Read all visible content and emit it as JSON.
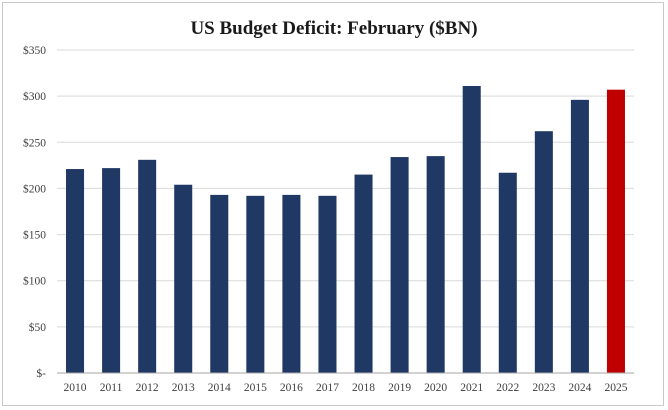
{
  "chart_data": {
    "type": "bar",
    "title": "US Budget Deficit: February ($BN)",
    "xlabel": "",
    "ylabel": "",
    "categories": [
      "2010",
      "2011",
      "2012",
      "2013",
      "2014",
      "2015",
      "2016",
      "2017",
      "2018",
      "2019",
      "2020",
      "2021",
      "2022",
      "2023",
      "2024",
      "2025"
    ],
    "values": [
      221,
      222,
      231,
      204,
      193,
      192,
      193,
      192,
      215,
      234,
      235,
      311,
      217,
      262,
      296,
      307
    ],
    "ylim": [
      0,
      350
    ],
    "yticks": [
      0,
      50,
      100,
      150,
      200,
      250,
      300,
      350
    ],
    "ytick_labels": [
      "$-",
      "$50",
      "$100",
      "$150",
      "$200",
      "$250",
      "$300",
      "$350"
    ],
    "grid": true,
    "legend": "none",
    "colors": {
      "bar": "#1f3864",
      "highlight": "#c00000",
      "highlight_category": "2025",
      "grid": "#d9d9d9",
      "axis": "#a6a6a6"
    }
  }
}
